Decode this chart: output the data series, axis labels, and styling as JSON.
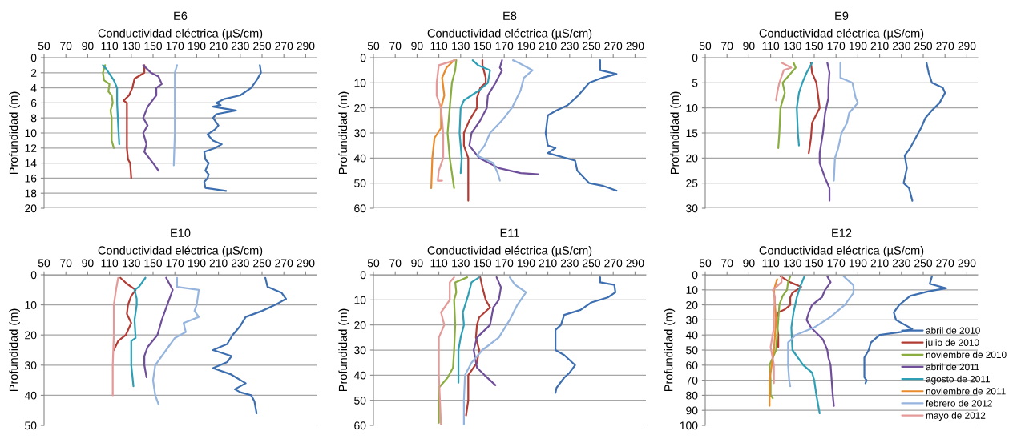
{
  "chart_data": [
    {
      "type": "line",
      "title": "E6",
      "xlabel": "Conductividad eléctrica (µS/cm)",
      "ylabel": "Profundidad (m)",
      "xlim": [
        50,
        300
      ],
      "xticks": [
        50,
        70,
        90,
        110,
        130,
        150,
        170,
        190,
        210,
        230,
        250,
        270,
        290
      ],
      "ylim": [
        20,
        0
      ],
      "yticks": [
        0,
        2,
        4,
        6,
        8,
        10,
        12,
        14,
        16,
        18,
        20
      ],
      "grid": "y",
      "series": [
        {
          "color": "#3d6fb0",
          "x": [
            248,
            249,
            245,
            240,
            230,
            215,
            208,
            212,
            205,
            226,
            208,
            205,
            210,
            207,
            200,
            205,
            213,
            207,
            197,
            198,
            201,
            198,
            201,
            200,
            197,
            198,
            217
          ],
          "values": [
            1,
            2,
            3,
            4,
            5,
            5.5,
            6,
            6.3,
            6.5,
            7,
            7.5,
            8,
            9,
            9.5,
            10.2,
            11,
            11.5,
            12,
            12.5,
            13.5,
            14,
            15,
            15.5,
            16,
            16.5,
            17.3,
            17.7
          ]
        },
        {
          "color": "#b23b34",
          "x": [
            142,
            142,
            133,
            131,
            128,
            123,
            126,
            126,
            126,
            127,
            129,
            130
          ],
          "values": [
            1,
            2,
            2.8,
            4,
            5,
            5.7,
            6,
            8,
            12,
            13.5,
            14,
            16
          ]
        },
        {
          "color": "#8aad3f",
          "x": [
            106,
            104,
            105,
            110,
            109,
            112,
            113,
            111,
            112,
            112,
            112,
            112,
            114
          ],
          "values": [
            1,
            2,
            3,
            3.5,
            4.5,
            5,
            6,
            7,
            8,
            9,
            10,
            11,
            12
          ]
        },
        {
          "color": "#6f4f9a",
          "x": [
            141,
            148,
            155,
            158,
            153,
            153,
            145,
            141,
            145,
            141,
            144,
            142,
            150,
            155
          ],
          "values": [
            1,
            2,
            2.5,
            3.5,
            4,
            5,
            6.5,
            8,
            9,
            10,
            11.5,
            12.5,
            14,
            15
          ]
        },
        {
          "color": "#2e9fb5",
          "x": [
            104,
            107,
            114,
            117,
            117,
            118,
            119
          ],
          "values": [
            1,
            1.5,
            3,
            4,
            6,
            9,
            11.5
          ]
        },
        {
          "color": "#95b4de",
          "x": [
            172,
            170,
            170,
            170,
            169
          ],
          "values": [
            1,
            2,
            6,
            10,
            14.3
          ]
        }
      ]
    },
    {
      "type": "line",
      "title": "E8",
      "xlabel": "Conductividad eléctrica (µS/cm)",
      "ylabel": "Profundidad (m)",
      "xlim": [
        50,
        300
      ],
      "xticks": [
        50,
        70,
        90,
        110,
        130,
        150,
        170,
        190,
        210,
        230,
        250,
        270,
        290
      ],
      "ylim": [
        60,
        0
      ],
      "yticks": [
        0,
        10,
        20,
        30,
        40,
        50,
        60
      ],
      "grid": "y",
      "series": [
        {
          "color": "#3d6fb0",
          "x": [
            258,
            258,
            273,
            260,
            248,
            238,
            228,
            218,
            210,
            208,
            210,
            217,
            210,
            235,
            237,
            248,
            260,
            273
          ],
          "values": [
            1,
            5,
            6.5,
            8,
            10,
            15,
            19,
            21,
            23,
            30,
            35,
            36,
            38,
            41,
            45,
            50,
            51,
            53
          ]
        },
        {
          "color": "#b23b34",
          "x": [
            150,
            150,
            153,
            153,
            148,
            145,
            145,
            138,
            133,
            133,
            137,
            137,
            137
          ],
          "values": [
            1,
            3,
            8,
            10,
            12,
            16,
            20,
            25,
            30,
            35,
            40,
            45,
            57
          ]
        },
        {
          "color": "#8aad3f",
          "x": [
            126,
            125,
            122,
            120,
            118,
            120,
            124
          ],
          "values": [
            1,
            5,
            10,
            20,
            30,
            40,
            52
          ]
        },
        {
          "color": "#6f4f9a",
          "x": [
            168,
            166,
            168,
            162,
            155,
            154,
            148,
            140,
            138,
            147,
            165,
            185,
            201
          ],
          "values": [
            1,
            4,
            5,
            10,
            15,
            20,
            25,
            30,
            35,
            40,
            44,
            46,
            46.5
          ]
        },
        {
          "color": "#2e9fb5",
          "x": [
            141,
            146,
            157,
            155,
            147,
            133,
            130,
            129,
            131,
            130
          ],
          "values": [
            1,
            3,
            5,
            10,
            13,
            17,
            20,
            30,
            40,
            46
          ]
        },
        {
          "color": "#e98a2c",
          "x": [
            124,
            117,
            113,
            115,
            112,
            112,
            106,
            104,
            103
          ],
          "values": [
            1,
            4,
            8,
            15,
            20,
            28,
            32,
            40,
            52
          ]
        },
        {
          "color": "#95b4de",
          "x": [
            178,
            183,
            196,
            188,
            185,
            177,
            168,
            157,
            152,
            145,
            160,
            164,
            166
          ],
          "values": [
            1,
            2,
            5,
            8,
            13,
            20,
            25,
            30,
            35,
            39,
            42,
            46,
            49
          ]
        },
        {
          "color": "#e39a98",
          "x": [
            125,
            110,
            108,
            108,
            112,
            114,
            114,
            110,
            109,
            113
          ],
          "values": [
            1,
            3,
            10,
            15,
            20,
            30,
            40,
            45,
            49,
            49
          ]
        }
      ]
    },
    {
      "type": "line",
      "title": "E9",
      "xlabel": "Conductividad eléctrica (µS/cm)",
      "ylabel": "Profundidad (m)",
      "xlim": [
        50,
        300
      ],
      "xticks": [
        50,
        70,
        90,
        110,
        130,
        150,
        170,
        190,
        210,
        230,
        250,
        270,
        290
      ],
      "ylim": [
        30,
        0
      ],
      "yticks": [
        0,
        5,
        10,
        15,
        20,
        25,
        30
      ],
      "grid": "y",
      "series": [
        {
          "color": "#3d6fb0",
          "x": [
            253,
            255,
            258,
            268,
            270,
            265,
            258,
            252,
            248,
            243,
            238,
            233,
            235,
            232,
            237,
            240
          ],
          "values": [
            1,
            3,
            5,
            6,
            7,
            9,
            10.5,
            12,
            14,
            16,
            18,
            19.5,
            22,
            25,
            26,
            28.5
          ]
        },
        {
          "color": "#b23b34",
          "x": [
            147,
            148,
            152,
            155,
            148,
            147,
            145
          ],
          "values": [
            1,
            3,
            5,
            10,
            13,
            16,
            19
          ]
        },
        {
          "color": "#8aad3f",
          "x": [
            131,
            133,
            125,
            121,
            123,
            119,
            118,
            117
          ],
          "values": [
            1,
            2,
            4,
            5,
            7,
            10,
            15,
            18
          ]
        },
        {
          "color": "#6f4f9a",
          "x": [
            162,
            164,
            163,
            163,
            160,
            158,
            155,
            155,
            160,
            164,
            164
          ],
          "values": [
            1,
            3,
            6,
            8,
            11,
            15,
            19,
            21,
            24,
            26,
            28.5
          ]
        },
        {
          "color": "#2e9fb5",
          "x": [
            148,
            143,
            139,
            136,
            134,
            135,
            136
          ],
          "values": [
            1,
            3,
            5,
            7,
            10,
            15,
            17.5
          ]
        },
        {
          "color": "#95b4de",
          "x": [
            174,
            174,
            185,
            188,
            190,
            182,
            180,
            175,
            172,
            169,
            168
          ],
          "values": [
            1,
            4,
            5,
            8,
            9,
            11,
            13,
            15,
            18,
            20,
            24.5
          ]
        },
        {
          "color": "#e39a98",
          "x": [
            120,
            129,
            122,
            118,
            116,
            115
          ],
          "values": [
            1,
            2,
            2.5,
            5,
            7,
            8.5
          ]
        }
      ]
    },
    {
      "type": "line",
      "title": "E10",
      "xlabel": "Conductividad eléctrica (µS/cm)",
      "ylabel": "Profundidad (m)",
      "xlim": [
        50,
        300
      ],
      "xticks": [
        50,
        70,
        90,
        110,
        130,
        150,
        170,
        190,
        210,
        230,
        250,
        270,
        290
      ],
      "ylim": [
        50,
        0
      ],
      "yticks": [
        0,
        10,
        20,
        30,
        40,
        50
      ],
      "grid": "y",
      "series": [
        {
          "color": "#3d6fb0",
          "x": [
            253,
            255,
            268,
            272,
            262,
            250,
            235,
            230,
            223,
            218,
            205,
            222,
            218,
            205,
            221,
            235,
            225,
            230,
            240,
            243,
            245
          ],
          "values": [
            1,
            4,
            6,
            8,
            10,
            12,
            14,
            17,
            20,
            23,
            25,
            27,
            29,
            31,
            33,
            36,
            38,
            39,
            40,
            42,
            46
          ]
        },
        {
          "color": "#b23b34",
          "x": [
            120,
            126,
            134,
            130,
            127,
            126,
            130,
            125,
            118,
            114
          ],
          "values": [
            1,
            3,
            5,
            7,
            10,
            13,
            16,
            20,
            22,
            25
          ]
        },
        {
          "color": "#6f4f9a",
          "x": [
            162,
            165,
            168,
            163,
            158,
            154,
            145,
            142,
            142,
            144
          ],
          "values": [
            1,
            3,
            5,
            10,
            15,
            20,
            24,
            27,
            30,
            34
          ]
        },
        {
          "color": "#2e9fb5",
          "x": [
            143,
            137,
            133,
            135,
            135,
            133,
            134,
            130,
            130,
            132
          ],
          "values": [
            1,
            4,
            5,
            8,
            10,
            15,
            21,
            22,
            30,
            37
          ]
        },
        {
          "color": "#95b4de",
          "x": [
            172,
            172,
            192,
            190,
            188,
            192,
            178,
            180,
            170,
            162,
            152,
            150,
            152,
            155
          ],
          "values": [
            1,
            4,
            5,
            10,
            12,
            14,
            16,
            19,
            21,
            25,
            30,
            35,
            40,
            43
          ]
        },
        {
          "color": "#e39a98",
          "x": [
            118,
            116,
            114,
            114,
            113,
            113
          ],
          "values": [
            1,
            5,
            10,
            20,
            30,
            40
          ]
        }
      ]
    },
    {
      "type": "line",
      "title": "E11",
      "xlabel": "Conductividad eléctrica (µS/cm)",
      "ylabel": "Profundidad (m)",
      "xlim": [
        50,
        300
      ],
      "xticks": [
        50,
        70,
        90,
        110,
        130,
        150,
        170,
        190,
        210,
        230,
        250,
        270,
        290
      ],
      "ylim": [
        60,
        0
      ],
      "yticks": [
        0,
        10,
        20,
        30,
        40,
        50,
        60
      ],
      "grid": "y",
      "series": [
        {
          "color": "#3d6fb0",
          "x": [
            258,
            258,
            271,
            272,
            265,
            250,
            240,
            225,
            222,
            217,
            217,
            225,
            235,
            230,
            225,
            218,
            217
          ],
          "values": [
            1,
            3,
            4,
            7,
            9,
            11,
            14,
            16,
            20,
            22,
            30,
            32,
            36,
            39,
            41,
            45,
            47
          ]
        },
        {
          "color": "#b23b34",
          "x": [
            148,
            150,
            153,
            157,
            147,
            145,
            144,
            147,
            145,
            137,
            137,
            135
          ],
          "values": [
            1,
            5,
            10,
            13,
            17,
            20,
            25,
            30,
            35,
            40,
            50,
            56
          ]
        },
        {
          "color": "#8aad3f",
          "x": [
            136,
            125,
            126,
            124,
            125,
            124,
            123,
            118,
            110,
            110
          ],
          "values": [
            1,
            3,
            7,
            10,
            20,
            30,
            37,
            41,
            45,
            59
          ]
        },
        {
          "color": "#6f4f9a",
          "x": [
            163,
            167,
            165,
            160,
            157,
            145,
            142,
            145,
            152,
            162
          ],
          "values": [
            1,
            5,
            10,
            13,
            20,
            25,
            30,
            37,
            40,
            44
          ]
        },
        {
          "color": "#2e9fb5",
          "x": [
            147,
            140,
            137,
            132,
            133,
            130,
            128,
            128
          ],
          "values": [
            1,
            3,
            8,
            15,
            20,
            25,
            30,
            43
          ]
        },
        {
          "color": "#95b4de",
          "x": [
            175,
            180,
            190,
            182,
            175,
            165,
            150,
            140,
            134,
            133,
            133
          ],
          "values": [
            1,
            4,
            7,
            12,
            18,
            25,
            30,
            35,
            40,
            50,
            60
          ]
        },
        {
          "color": "#e39a98",
          "x": [
            124,
            120,
            120,
            112,
            115,
            110,
            110,
            111,
            112
          ],
          "values": [
            1,
            3,
            10,
            15,
            20,
            25,
            40,
            50,
            60
          ]
        }
      ]
    },
    {
      "type": "line",
      "title": "E12",
      "xlabel": "Conductividad eléctrica (µS/cm)",
      "ylabel": "Profundidad (m)",
      "xlim": [
        50,
        300
      ],
      "xticks": [
        50,
        70,
        90,
        110,
        130,
        150,
        170,
        190,
        210,
        230,
        250,
        270,
        290
      ],
      "ylim": [
        100,
        0
      ],
      "yticks": [
        0,
        10,
        20,
        30,
        40,
        50,
        60,
        70,
        80,
        90,
        100
      ],
      "grid": "y",
      "legend": "right",
      "series": [
        {
          "name": "abril de 2010",
          "color": "#3d6fb0",
          "x": [
            258,
            256,
            271,
            255,
            238,
            228,
            223,
            225,
            240,
            230,
            210,
            202,
            200,
            196,
            196,
            196,
            198,
            197
          ],
          "values": [
            1,
            6,
            9,
            11,
            14,
            20,
            25,
            30,
            36,
            38,
            40,
            45,
            50,
            55,
            60,
            68,
            70,
            72
          ]
        },
        {
          "name": "julio de 2010",
          "color": "#b23b34",
          "x": [
            119,
            128,
            138,
            130,
            128,
            128,
            123,
            117,
            115,
            117,
            117
          ],
          "values": [
            1,
            5,
            8,
            12,
            15,
            20,
            23,
            25,
            30,
            40,
            48
          ]
        },
        {
          "name": "noviembre de 2010",
          "color": "#8aad3f",
          "x": [
            128,
            126,
            125,
            121,
            118,
            117,
            116,
            115,
            109,
            110,
            110,
            112
          ],
          "values": [
            1,
            5,
            10,
            14,
            20,
            30,
            40,
            50,
            60,
            70,
            80,
            82
          ]
        },
        {
          "name": "abril de 2011",
          "color": "#6f4f9a",
          "x": [
            162,
            165,
            160,
            157,
            148,
            145,
            143,
            147,
            158,
            162,
            163,
            165,
            166,
            167,
            168
          ],
          "values": [
            1,
            5,
            10,
            15,
            20,
            25,
            30,
            35,
            43,
            50,
            55,
            60,
            70,
            80,
            87
          ]
        },
        {
          "name": "agosto de 2011",
          "color": "#2e9fb5",
          "x": [
            141,
            137,
            134,
            131,
            129,
            130,
            140,
            148,
            150,
            152,
            155
          ],
          "values": [
            1,
            8,
            15,
            25,
            35,
            50,
            60,
            65,
            70,
            80,
            92
          ]
        },
        {
          "name": "noviembre de 2011",
          "color": "#e98a2c",
          "x": [
            116,
            113,
            114,
            115,
            114,
            113,
            111,
            109,
            109,
            109
          ],
          "values": [
            3,
            10,
            20,
            30,
            40,
            50,
            60,
            70,
            80,
            87
          ]
        },
        {
          "name": "febrero de 2012",
          "color": "#95b4de",
          "x": [
            177,
            186,
            186,
            178,
            165,
            150,
            133,
            126,
            126,
            127,
            128
          ],
          "values": [
            1,
            7,
            12,
            20,
            28,
            35,
            40,
            45,
            60,
            70,
            74
          ]
        },
        {
          "name": "mayo de 2012",
          "color": "#e39a98",
          "x": [
            120,
            120,
            112,
            114,
            113,
            113,
            110,
            113,
            113
          ],
          "values": [
            0.5,
            5,
            10,
            15,
            25,
            35,
            48,
            60,
            72
          ]
        }
      ]
    }
  ]
}
